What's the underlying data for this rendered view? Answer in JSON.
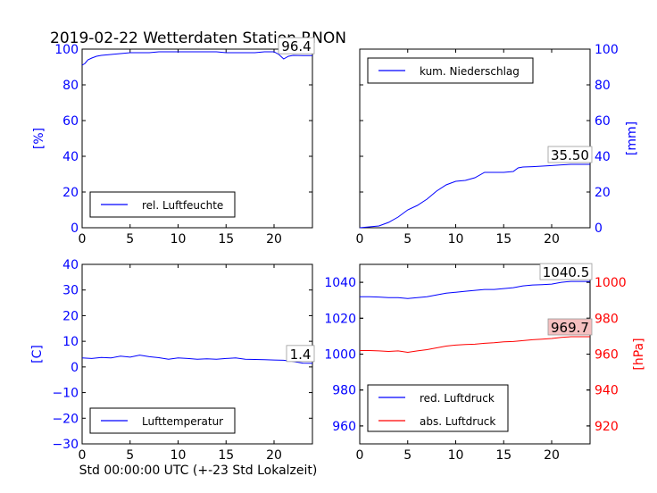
{
  "title": "2019-02-22 Wetterdaten Station RNON",
  "xaxis_label": "Std 00:00:00 UTC (+-23 Std Lokalzeit)",
  "colors": {
    "blue": "#0000ff",
    "red": "#ff0000",
    "black": "#000000"
  },
  "chart_data": [
    {
      "type": "line",
      "ylabel": "[%]",
      "ylim": [
        0,
        100
      ],
      "yticks": [
        "0",
        "20",
        "40",
        "60",
        "80",
        "100"
      ],
      "xlim": [
        0,
        24
      ],
      "xticks": [
        "0",
        "5",
        "10",
        "15",
        "20"
      ],
      "yaxis_side": "left",
      "series": [
        {
          "name": "rel. Luftfeuchte",
          "color": "#0000ff",
          "x": [
            0,
            0.3,
            0.6,
            1,
            1.5,
            2,
            3,
            4,
            5,
            6,
            7,
            8,
            9,
            10,
            11,
            12,
            13,
            14,
            15,
            16,
            17,
            18,
            19,
            20,
            20.5,
            21,
            21.5,
            22,
            23,
            24
          ],
          "y": [
            91,
            92,
            94,
            95,
            96,
            96.5,
            97,
            97.5,
            98,
            98,
            98,
            98.5,
            98.5,
            98.5,
            98.5,
            98.5,
            98.5,
            98.5,
            98,
            98,
            98,
            98,
            98.5,
            98.5,
            97,
            94.5,
            96,
            96.5,
            96.4,
            96.4
          ]
        }
      ],
      "annotation": "96.4",
      "legend": "bottom-left",
      "grid": false
    },
    {
      "type": "line",
      "ylabel": "[mm]",
      "ylim": [
        0,
        100
      ],
      "yticks": [
        "0",
        "20",
        "40",
        "60",
        "80",
        "100"
      ],
      "xlim": [
        0,
        24
      ],
      "xticks": [
        "0",
        "5",
        "10",
        "15",
        "20"
      ],
      "yaxis_side": "right",
      "series": [
        {
          "name": "kum. Niederschlag",
          "color": "#0000ff",
          "x": [
            0,
            1,
            2,
            3,
            4,
            5,
            6,
            7,
            8,
            9,
            9.5,
            10,
            11,
            12,
            13,
            14,
            15,
            16,
            16.5,
            17,
            18,
            19,
            20,
            21,
            22,
            23,
            24
          ],
          "y": [
            0,
            0.5,
            1,
            3,
            6,
            10,
            12.5,
            16,
            20.5,
            24,
            25,
            26,
            26.5,
            28,
            31,
            31,
            31,
            31.5,
            33.5,
            34,
            34.2,
            34.5,
            34.8,
            35.2,
            35.5,
            35.5,
            35.5
          ]
        }
      ],
      "annotation": "35.50",
      "legend": "top-left",
      "grid": false
    },
    {
      "type": "line",
      "ylabel": "[C]",
      "ylim": [
        -30,
        40
      ],
      "yticks": [
        "−30",
        "−20",
        "−10",
        "0",
        "10",
        "20",
        "30",
        "40"
      ],
      "xlim": [
        0,
        24
      ],
      "xticks": [
        "0",
        "5",
        "10",
        "15",
        "20"
      ],
      "yaxis_side": "left",
      "series": [
        {
          "name": "Lufttemperatur",
          "color": "#0000ff",
          "x": [
            0,
            1,
            2,
            3,
            4,
            5,
            6,
            7,
            8,
            9,
            10,
            11,
            12,
            13,
            14,
            15,
            16,
            17,
            18,
            19,
            20,
            21,
            22,
            23,
            24
          ],
          "y": [
            3.5,
            3.3,
            3.7,
            3.5,
            4.2,
            3.8,
            4.6,
            4,
            3.6,
            3,
            3.5,
            3.3,
            3,
            3.2,
            3,
            3.3,
            3.5,
            3,
            2.9,
            2.8,
            2.7,
            2.6,
            2.1,
            1.5,
            1.4
          ]
        }
      ],
      "annotation": "1.4",
      "legend": "bottom-left",
      "grid": false
    },
    {
      "type": "line",
      "ylabel": "[hPa]",
      "ylim": [
        950,
        1050
      ],
      "yticks": [
        "960",
        "980",
        "1000",
        "1020",
        "1040"
      ],
      "ylim_right": [
        910,
        1010
      ],
      "yticks_right": [
        "920",
        "940",
        "960",
        "980",
        "1000"
      ],
      "xlim": [
        0,
        24
      ],
      "xticks": [
        "0",
        "5",
        "10",
        "15",
        "20"
      ],
      "series": [
        {
          "name": "red. Luftdruck",
          "color": "#0000ff",
          "x": [
            0,
            1,
            2,
            3,
            4,
            5,
            6,
            7,
            8,
            9,
            10,
            11,
            12,
            13,
            14,
            15,
            16,
            17,
            18,
            19,
            20,
            21,
            22,
            23,
            24
          ],
          "y": [
            1032,
            1032,
            1031.8,
            1031.5,
            1031.5,
            1031,
            1031.5,
            1032,
            1033,
            1034,
            1034.5,
            1035,
            1035.5,
            1036,
            1036,
            1036.5,
            1037,
            1038,
            1038.5,
            1038.7,
            1039,
            1040,
            1040.5,
            1040.5,
            1040.5
          ]
        },
        {
          "name": "abs. Luftdruck",
          "color": "#ff0000",
          "axis": "right",
          "x": [
            0,
            1,
            2,
            3,
            4,
            5,
            6,
            7,
            8,
            9,
            10,
            11,
            12,
            13,
            14,
            15,
            16,
            17,
            18,
            19,
            20,
            21,
            22,
            23,
            24
          ],
          "y": [
            962,
            962,
            961.8,
            961.5,
            961.8,
            961,
            961.8,
            962.5,
            963.5,
            964.5,
            965,
            965.3,
            965.5,
            966,
            966.3,
            966.8,
            967,
            967.5,
            968,
            968.3,
            968.7,
            969.3,
            969.7,
            969.7,
            969.7
          ]
        }
      ],
      "annotations": [
        "1040.5",
        "969.7"
      ],
      "legend": "bottom-left",
      "grid": false
    }
  ]
}
